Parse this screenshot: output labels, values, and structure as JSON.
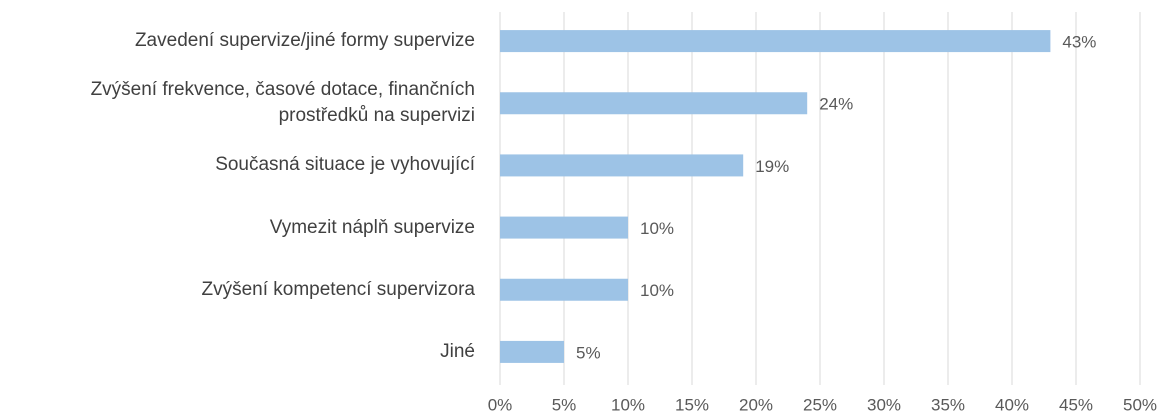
{
  "chart_data": {
    "type": "bar",
    "orientation": "horizontal",
    "categories": [
      "Zavedení supervize/jiné formy supervize",
      "Zvýšení frekvence, časové dotace, finančních prostředků na supervizi",
      "Současná situace je vyhovující",
      "Vymezit náplň supervize",
      "Zvýšení kompetencí supervizora",
      "Jiné"
    ],
    "values": [
      43,
      24,
      19,
      10,
      10,
      5
    ],
    "value_labels": [
      "43%",
      "24%",
      "19%",
      "10%",
      "10%",
      "5%"
    ],
    "color": "#9dc3e6",
    "xlim": [
      0,
      50
    ],
    "xticks": [
      {
        "value": 0,
        "label": "0%"
      },
      {
        "value": 5,
        "label": "5%"
      },
      {
        "value": 10,
        "label": "10%"
      },
      {
        "value": 15,
        "label": "15%"
      },
      {
        "value": 20,
        "label": "20%"
      },
      {
        "value": 25,
        "label": "25%"
      },
      {
        "value": 30,
        "label": "30%"
      },
      {
        "value": 35,
        "label": "35%"
      },
      {
        "value": 40,
        "label": "40%"
      },
      {
        "value": 45,
        "label": "45%"
      },
      {
        "value": 50,
        "label": "50%"
      }
    ],
    "grid": true
  }
}
